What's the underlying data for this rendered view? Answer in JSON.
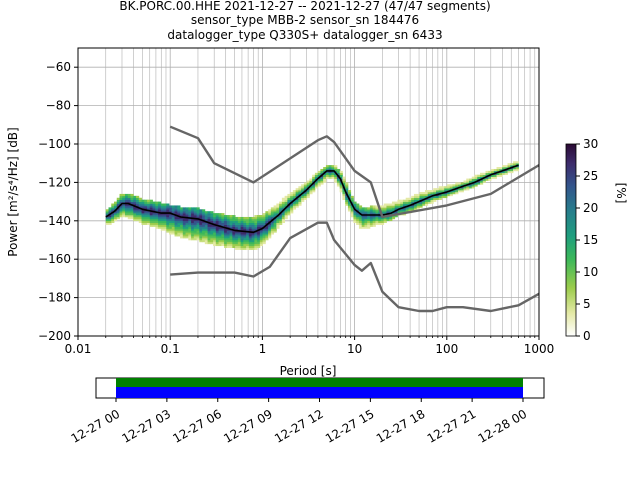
{
  "title_lines": [
    "BK.PORC.00.HHE   2021-12-27 -- 2021-12-27  (47/47 segments)",
    "sensor_type MBB-2 sensor_sn 184476",
    "datalogger_type Q330S+ datalogger_sn 6433"
  ],
  "chart_data": [
    {
      "type": "heatmap",
      "xlabel": "Period [s]",
      "ylabel": "Power [m²/s⁴/Hz] [dB]",
      "xscale": "log",
      "xlim": [
        0.01,
        1000
      ],
      "ylim": [
        -200,
        -50
      ],
      "xticks": [
        0.01,
        0.1,
        1,
        10,
        100,
        1000
      ],
      "xtick_labels": [
        "0.01",
        "0.1",
        "1",
        "10",
        "100",
        "1000"
      ],
      "yticks": [
        -60,
        -80,
        -100,
        -120,
        -140,
        -160,
        -180,
        -200
      ],
      "ytick_labels": [
        "−60",
        "−80",
        "−100",
        "−120",
        "−140",
        "−160",
        "−180",
        "−200"
      ],
      "grid": true,
      "colorbar": {
        "label": "[%]",
        "range": [
          0,
          30
        ],
        "ticks": [
          0,
          5,
          10,
          15,
          20,
          25,
          30
        ],
        "colors": [
          "#ffffff",
          "#e4e9a5",
          "#9ccc4c",
          "#3cb85a",
          "#1f9e7e",
          "#277e8c",
          "#33558c",
          "#3d2b6b",
          "#2a0a33"
        ]
      },
      "series": [
        {
          "role": "mode",
          "color": "#000000",
          "x": [
            0.02,
            0.025,
            0.03,
            0.035,
            0.05,
            0.08,
            0.1,
            0.13,
            0.2,
            0.3,
            0.5,
            0.8,
            1.0,
            1.5,
            2,
            3,
            4,
            5,
            6,
            7,
            8,
            10,
            12,
            15,
            20,
            25,
            30,
            40,
            50,
            70,
            100,
            150,
            200,
            300,
            400,
            600
          ],
          "values": [
            -138,
            -135,
            -131,
            -131,
            -134,
            -136,
            -136,
            -138,
            -139,
            -142,
            -145,
            -146,
            -144,
            -137,
            -131,
            -124,
            -118,
            -114,
            -114,
            -118,
            -125,
            -134,
            -137,
            -137,
            -137,
            -136,
            -134,
            -132,
            -130,
            -127,
            -125,
            -122,
            -120,
            -116,
            -114,
            -111
          ]
        },
        {
          "role": "noise-model-upper",
          "color": "#666666",
          "x": [
            0.1,
            0.2,
            0.3,
            0.8,
            4,
            5,
            6,
            10,
            15,
            20,
            100,
            300,
            1000
          ],
          "values": [
            -91,
            -97,
            -110,
            -120,
            -98,
            -96,
            -99,
            -114,
            -120,
            -138,
            -132,
            -126,
            -111
          ]
        },
        {
          "role": "noise-model-lower",
          "color": "#666666",
          "x": [
            0.1,
            0.2,
            0.5,
            0.8,
            1.2,
            2,
            4,
            5,
            6,
            10,
            12,
            15,
            20,
            30,
            50,
            70,
            100,
            150,
            300,
            600,
            1000
          ],
          "values": [
            -168,
            -167,
            -167,
            -169,
            -164,
            -149,
            -141,
            -141,
            -150,
            -163,
            -166,
            -162,
            -177,
            -185,
            -187,
            -187,
            -185,
            -185,
            -187,
            -184,
            -178
          ]
        }
      ],
      "density_band": {
        "x": [
          0.02,
          0.025,
          0.03,
          0.035,
          0.05,
          0.08,
          0.1,
          0.13,
          0.2,
          0.3,
          0.5,
          0.8,
          1.0,
          1.5,
          2,
          3,
          4,
          5,
          6,
          7,
          8,
          10,
          12,
          15,
          20,
          25,
          30,
          40,
          50,
          70,
          100,
          150,
          200,
          300,
          400,
          600
        ],
        "low": [
          -142,
          -140,
          -137,
          -138,
          -141,
          -144,
          -146,
          -148,
          -150,
          -152,
          -154,
          -155,
          -152,
          -143,
          -136,
          -128,
          -122,
          -118,
          -118,
          -123,
          -131,
          -140,
          -144,
          -143,
          -141,
          -139,
          -137,
          -135,
          -133,
          -130,
          -127,
          -124,
          -122,
          -118,
          -116,
          -113
        ],
        "high": [
          -135,
          -131,
          -126,
          -126,
          -129,
          -131,
          -132,
          -133,
          -134,
          -136,
          -138,
          -138,
          -137,
          -131,
          -126,
          -120,
          -115,
          -111,
          -111,
          -114,
          -120,
          -130,
          -133,
          -133,
          -132,
          -131,
          -130,
          -128,
          -126,
          -124,
          -122,
          -120,
          -117,
          -114,
          -112,
          -109
        ]
      }
    },
    {
      "type": "table",
      "role": "data-availability",
      "xtick_labels": [
        "12-27 00",
        "12-27 03",
        "12-27 06",
        "12-27 09",
        "12-27 12",
        "12-27 15",
        "12-27 18",
        "12-27 21",
        "12-28 00"
      ],
      "coverage_hours": [
        0,
        24
      ],
      "bar_colors": [
        "#008000",
        "#0000ff"
      ]
    }
  ]
}
